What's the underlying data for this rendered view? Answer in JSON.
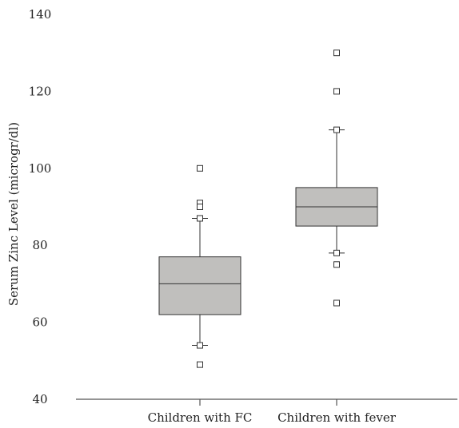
{
  "chart_data": {
    "type": "boxplot",
    "title": "",
    "xlabel": "",
    "ylabel": "Serum Zinc Level (microgr/dl)",
    "ylim": [
      40,
      140
    ],
    "yticks": [
      40,
      60,
      80,
      100,
      120,
      140
    ],
    "grid": false,
    "colors": {
      "box_fill": "#c0bfbd",
      "stroke": "#333333",
      "axis": "#555555"
    },
    "categories": [
      "Children with FC",
      "Children with fever"
    ],
    "series": [
      {
        "category": "Children with FC",
        "q1": 62,
        "median": 70,
        "q3": 77,
        "whisker_low": 54,
        "whisker_high": 87,
        "outliers": [
          100,
          91,
          90,
          87,
          54,
          49
        ]
      },
      {
        "category": "Children with fever",
        "q1": 85,
        "median": 90,
        "q3": 95,
        "whisker_low": 78,
        "whisker_high": 110,
        "outliers": [
          130,
          120,
          110,
          78,
          75,
          65
        ]
      }
    ]
  }
}
